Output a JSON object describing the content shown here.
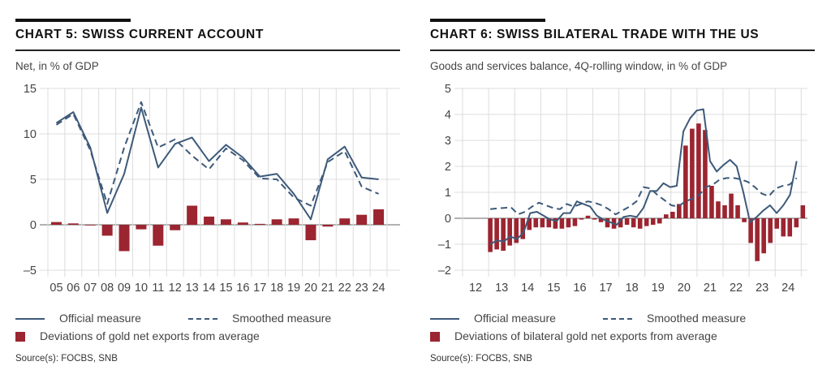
{
  "colors": {
    "official": "#3d5a7a",
    "smoothed": "#3d5a7a",
    "bars": "#9b2530",
    "grid": "#dcdcdc",
    "zero": "#999999"
  },
  "chart_data": [
    {
      "type": "bar+line",
      "title": "CHART 5: SWISS CURRENT ACCOUNT",
      "subtitle": "Net, in % of GDP",
      "xlabel": "",
      "ylabel": "Net, in % of GDP",
      "ylim": [
        -6,
        15
      ],
      "yticks": [
        15,
        10,
        5,
        0,
        -5
      ],
      "ytick_labels": [
        "15",
        "10",
        "5",
        "0",
        "–5"
      ],
      "grid": true,
      "categories": [
        "05",
        "06",
        "07",
        "08",
        "09",
        "10",
        "11",
        "12",
        "13",
        "14",
        "15",
        "16",
        "17",
        "18",
        "19",
        "20",
        "21",
        "22",
        "23",
        "24"
      ],
      "series": [
        {
          "name": "Official measure",
          "kind": "line",
          "values": [
            11.2,
            12.4,
            8.5,
            1.3,
            5.6,
            12.9,
            6.3,
            8.9,
            9.6,
            7.0,
            8.8,
            7.4,
            5.3,
            5.6,
            3.4,
            0.6,
            7.2,
            8.6,
            5.2,
            5.0
          ]
        },
        {
          "name": "Smoothed measure",
          "kind": "dashed-line",
          "values": [
            11.0,
            12.2,
            8.2,
            2.3,
            8.5,
            13.5,
            8.5,
            9.4,
            7.6,
            6.1,
            8.4,
            7.1,
            5.1,
            5.0,
            3.0,
            2.1,
            6.9,
            8.1,
            4.2,
            3.4
          ]
        },
        {
          "name": "Deviations of gold net exports from average",
          "kind": "bar",
          "values": [
            0.3,
            0.15,
            0.0,
            -1.2,
            -2.9,
            -0.5,
            -2.3,
            -0.6,
            2.1,
            0.9,
            0.6,
            0.25,
            0.1,
            0.6,
            0.7,
            -1.7,
            -0.2,
            0.7,
            1.1,
            1.7
          ]
        }
      ],
      "legend": [
        "Official measure",
        "Smoothed measure",
        "Deviations of gold net exports from average"
      ],
      "legend_position": "bottom",
      "source": "Source(s): FOCBS, SNB"
    },
    {
      "type": "bar+line",
      "title": "CHART 6: SWISS BILATERAL TRADE WITH THE US",
      "subtitle": "Goods and services balance, 4Q-rolling window, in % of GDP",
      "xlabel": "",
      "ylabel": "in % of GDP",
      "ylim": [
        -2.2,
        5
      ],
      "yticks": [
        5,
        4,
        3,
        2,
        1,
        0,
        -1,
        -2
      ],
      "ytick_labels": [
        "5",
        "4",
        "3",
        "2",
        "1",
        "0",
        "–1",
        "–2"
      ],
      "grid": true,
      "categories": [
        "12",
        "13",
        "14",
        "15",
        "16",
        "17",
        "18",
        "19",
        "20",
        "21",
        "22",
        "23",
        "24"
      ],
      "quarter_start": "2012Q4",
      "series": [
        {
          "name": "Official measure",
          "kind": "line",
          "values": [
            -1.0,
            -0.85,
            -0.9,
            -0.7,
            -0.8,
            -0.55,
            0.2,
            0.25,
            0.1,
            -0.05,
            -0.1,
            0.2,
            0.2,
            0.65,
            0.55,
            0.45,
            0.1,
            -0.05,
            -0.15,
            -0.25,
            0.05,
            0.1,
            0.05,
            0.4,
            1.05,
            1.05,
            1.35,
            1.2,
            1.25,
            3.35,
            3.85,
            4.15,
            4.2,
            2.2,
            1.8,
            2.05,
            2.25,
            2.0,
            1.0,
            -0.15,
            0.05,
            0.3,
            0.5,
            0.2,
            0.5,
            0.9,
            2.2
          ]
        },
        {
          "name": "Smoothed measure",
          "kind": "dashed-line",
          "values": [
            0.35,
            0.38,
            0.4,
            0.42,
            0.15,
            0.25,
            0.45,
            0.6,
            0.5,
            0.4,
            0.35,
            0.55,
            0.45,
            0.55,
            0.65,
            0.6,
            0.5,
            0.35,
            0.15,
            0.3,
            0.45,
            0.65,
            1.2,
            1.15,
            0.9,
            0.7,
            0.5,
            0.45,
            0.65,
            0.75,
            0.9,
            1.2,
            1.3,
            1.5,
            1.55,
            1.55,
            1.5,
            1.4,
            1.2,
            0.95,
            0.85,
            1.15,
            1.25,
            1.3,
            1.55
          ]
        },
        {
          "name": "Deviations of bilateral gold net exports from average",
          "kind": "bar",
          "values": [
            -1.3,
            -1.2,
            -1.25,
            -1.05,
            -0.95,
            -0.8,
            -0.45,
            -0.35,
            -0.35,
            -0.35,
            -0.4,
            -0.4,
            -0.35,
            -0.3,
            -0.05,
            0.1,
            -0.05,
            -0.15,
            -0.35,
            -0.4,
            -0.35,
            -0.25,
            -0.35,
            -0.4,
            -0.3,
            -0.25,
            -0.2,
            0.15,
            0.25,
            0.55,
            2.8,
            3.45,
            3.65,
            3.4,
            1.25,
            0.65,
            0.5,
            0.95,
            0.5,
            -0.15,
            -0.95,
            -1.65,
            -1.35,
            -0.95,
            -0.4,
            -0.7,
            -0.7,
            -0.35,
            0.5
          ]
        }
      ],
      "legend": [
        "Official measure",
        "Smoothed measure",
        "Deviations of bilateral gold net exports from average"
      ],
      "legend_position": "bottom",
      "source": "Source(s): FOCBS, SNB"
    }
  ],
  "panels": [
    {
      "title": "CHART 5: SWISS CURRENT ACCOUNT",
      "subtitle": "Net, in % of GDP",
      "legend": {
        "official": "Official measure",
        "smoothed": "Smoothed measure",
        "bars": "Deviations of gold net exports from average"
      },
      "source": "Source(s): FOCBS, SNB"
    },
    {
      "title": "CHART 6: SWISS BILATERAL TRADE WITH THE US",
      "subtitle": "Goods and services balance, 4Q-rolling window, in % of GDP",
      "legend": {
        "official": "Official measure",
        "smoothed": "Smoothed measure",
        "bars": "Deviations of bilateral gold net exports from average"
      },
      "source": "Source(s): FOCBS, SNB"
    }
  ]
}
